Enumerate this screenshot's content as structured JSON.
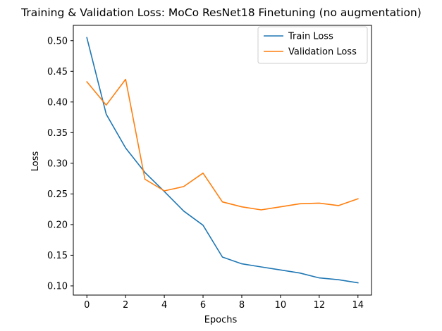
{
  "chart_data": {
    "type": "line",
    "title": "Training & Validation Loss: MoCo ResNet18 Finetuning (no augmentation)",
    "xlabel": "Epochs",
    "ylabel": "Loss",
    "x": [
      0,
      1,
      2,
      3,
      4,
      5,
      6,
      7,
      8,
      9,
      10,
      11,
      12,
      13,
      14
    ],
    "xlim": [
      -0.7,
      14.7
    ],
    "ylim": [
      0.085,
      0.525
    ],
    "xticks": [
      0,
      2,
      4,
      6,
      8,
      10,
      12,
      14
    ],
    "yticks": [
      "0.10",
      "0.15",
      "0.20",
      "0.25",
      "0.30",
      "0.35",
      "0.40",
      "0.45",
      "0.50"
    ],
    "grid": false,
    "legend_position": "top-right",
    "series": [
      {
        "name": "Train Loss",
        "color": "#1f77b4",
        "values": [
          0.505,
          0.38,
          0.325,
          0.285,
          0.254,
          0.222,
          0.199,
          0.147,
          0.136,
          0.131,
          0.126,
          0.121,
          0.113,
          0.11,
          0.105
        ]
      },
      {
        "name": "Validation Loss",
        "color": "#ff7f0e",
        "values": [
          0.433,
          0.395,
          0.437,
          0.274,
          0.255,
          0.262,
          0.284,
          0.237,
          0.229,
          0.224,
          0.229,
          0.234,
          0.235,
          0.231,
          0.242
        ]
      }
    ]
  }
}
